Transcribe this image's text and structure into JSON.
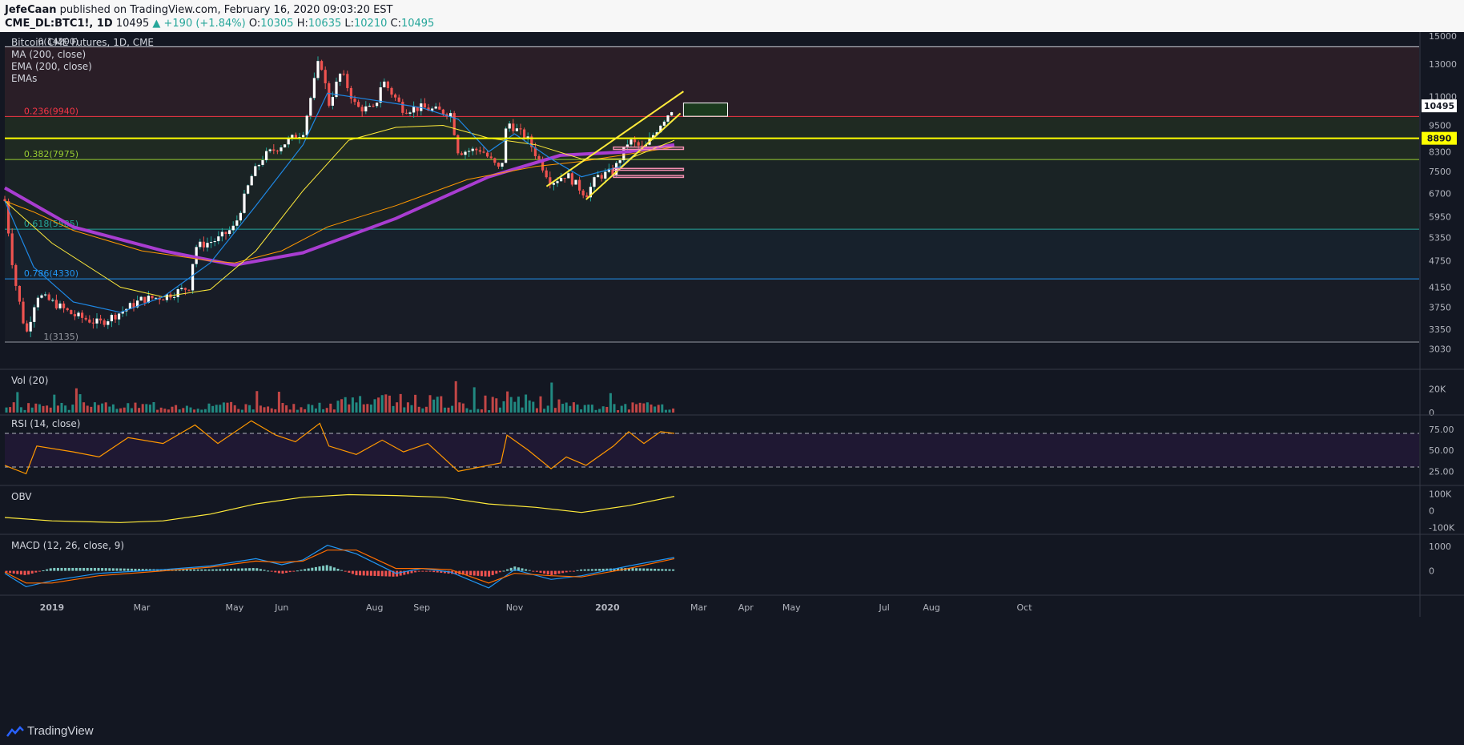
{
  "header": {
    "author": "JefeCaan",
    "published": "published on TradingView.com, February 16, 2020 09:03:20 EST",
    "symbol": "CME_DL:BTC1!, 1D",
    "last": "10495",
    "change": "▲ +190 (+1.84%)",
    "o_label": "O:",
    "o_val": "10305",
    "h_label": "H:",
    "h_val": "10635",
    "l_label": "L:",
    "l_val": "10210",
    "c_label": "C:",
    "c_val": "10495"
  },
  "footer": {
    "brand": "TradingView"
  },
  "chart_data": [
    {
      "type": "candlestick",
      "title": "Bitcoin CME Futures, 1D, CME",
      "indicators": [
        "MA (200, close)",
        "EMA (200, close)",
        "EMAs"
      ],
      "scale": "log",
      "y_ticks": [
        15000,
        13000,
        11000,
        9500,
        8300,
        7500,
        6700,
        5950,
        5350,
        4750,
        4150,
        3750,
        3350,
        3030
      ],
      "y_tick_labels": [
        "15000",
        "13000",
        "11000",
        "9500",
        "8300",
        "7500",
        "6700",
        "5950",
        "5350",
        "4750",
        "4150",
        "3750",
        "3350",
        "3030"
      ],
      "price_badges": [
        {
          "label": "10495",
          "value": 10495,
          "color": "#ffffff"
        },
        {
          "label": "8890",
          "value": 8890,
          "color": "#ffff00"
        }
      ],
      "fib_levels": [
        {
          "label": "0(14200)",
          "value": 14200,
          "color": "#d1d4dc"
        },
        {
          "label": "0.236(9940)",
          "value": 9940,
          "color": "#f23645"
        },
        {
          "label": "0.382(7975)",
          "value": 7975,
          "color": "#9acd32"
        },
        {
          "label": "0.618(5585)",
          "value": 5585,
          "color": "#26a69a"
        },
        {
          "label": "0.786(4330)",
          "value": 4330,
          "color": "#2196f3"
        },
        {
          "label": "1(3135)",
          "value": 3135,
          "color": "#9598a1"
        }
      ],
      "x_ticks": [
        "2019",
        "Mar",
        "May",
        "Jun",
        "Aug",
        "Sep",
        "Nov",
        "2020",
        "Mar",
        "Apr",
        "May",
        "Jul",
        "Aug",
        "Oct"
      ],
      "close_path": [
        [
          "2018-12-01",
          6450
        ],
        [
          "2018-12-07",
          4400
        ],
        [
          "2018-12-15",
          3250
        ],
        [
          "2018-12-22",
          4000
        ],
        [
          "2019-01-01",
          3850
        ],
        [
          "2019-01-15",
          3600
        ],
        [
          "2019-02-01",
          3450
        ],
        [
          "2019-02-15",
          3650
        ],
        [
          "2019-03-01",
          3900
        ],
        [
          "2019-03-15",
          3950
        ],
        [
          "2019-04-01",
          4150
        ],
        [
          "2019-04-05",
          5100
        ],
        [
          "2019-04-20",
          5300
        ],
        [
          "2019-05-01",
          5650
        ],
        [
          "2019-05-12",
          7300
        ],
        [
          "2019-05-20",
          8100
        ],
        [
          "2019-06-01",
          8600
        ],
        [
          "2019-06-15",
          9200
        ],
        [
          "2019-06-26",
          13500
        ],
        [
          "2019-07-02",
          10600
        ],
        [
          "2019-07-10",
          12500
        ],
        [
          "2019-07-20",
          10400
        ],
        [
          "2019-08-01",
          10300
        ],
        [
          "2019-08-06",
          12000
        ],
        [
          "2019-08-20",
          10300
        ],
        [
          "2019-09-01",
          10400
        ],
        [
          "2019-09-20",
          10100
        ],
        [
          "2019-09-25",
          8300
        ],
        [
          "2019-10-10",
          8400
        ],
        [
          "2019-10-23",
          7500
        ],
        [
          "2019-10-27",
          9700
        ],
        [
          "2019-11-10",
          8800
        ],
        [
          "2019-11-25",
          7100
        ],
        [
          "2019-12-05",
          7400
        ],
        [
          "2019-12-18",
          6650
        ],
        [
          "2019-12-25",
          7300
        ],
        [
          "2020-01-05",
          7500
        ],
        [
          "2020-01-15",
          8800
        ],
        [
          "2020-01-25",
          8400
        ],
        [
          "2020-02-05",
          9600
        ],
        [
          "2020-02-14",
          10495
        ]
      ],
      "ma200_path": [
        [
          "2018-12-01",
          6900
        ],
        [
          "2019-01-15",
          5650
        ],
        [
          "2019-03-15",
          5000
        ],
        [
          "2019-05-01",
          4650
        ],
        [
          "2019-06-15",
          4950
        ],
        [
          "2019-08-15",
          5900
        ],
        [
          "2019-10-15",
          7300
        ],
        [
          "2019-12-01",
          8150
        ],
        [
          "2020-01-15",
          8300
        ],
        [
          "2020-02-14",
          8600
        ]
      ],
      "ema200_path": [
        [
          "2018-12-01",
          6450
        ],
        [
          "2018-12-20",
          6100
        ],
        [
          "2019-01-15",
          5550
        ],
        [
          "2019-03-01",
          5000
        ],
        [
          "2019-04-15",
          4750
        ],
        [
          "2019-05-01",
          4700
        ],
        [
          "2019-06-01",
          5000
        ],
        [
          "2019-07-01",
          5650
        ],
        [
          "2019-08-15",
          6300
        ],
        [
          "2019-10-01",
          7200
        ],
        [
          "2019-11-15",
          7700
        ],
        [
          "2019-12-15",
          7900
        ],
        [
          "2020-01-15",
          8200
        ],
        [
          "2020-02-14",
          8500
        ]
      ],
      "ema_fast_path": [
        [
          "2018-12-01",
          6450
        ],
        [
          "2018-12-20",
          4600
        ],
        [
          "2019-01-15",
          3850
        ],
        [
          "2019-02-15",
          3650
        ],
        [
          "2019-03-15",
          3950
        ],
        [
          "2019-04-15",
          4700
        ],
        [
          "2019-05-15",
          6300
        ],
        [
          "2019-06-15",
          8600
        ],
        [
          "2019-07-01",
          11200
        ],
        [
          "2019-08-01",
          10800
        ],
        [
          "2019-09-01",
          10400
        ],
        [
          "2019-09-25",
          9800
        ],
        [
          "2019-10-15",
          8300
        ],
        [
          "2019-11-01",
          9100
        ],
        [
          "2019-11-25",
          8000
        ],
        [
          "2019-12-15",
          7300
        ],
        [
          "2020-01-10",
          7700
        ],
        [
          "2020-02-14",
          9800
        ]
      ],
      "ema_slow_path": [
        [
          "2018-12-01",
          6450
        ],
        [
          "2019-01-01",
          5200
        ],
        [
          "2019-02-15",
          4150
        ],
        [
          "2019-03-15",
          3950
        ],
        [
          "2019-04-15",
          4100
        ],
        [
          "2019-05-15",
          5000
        ],
        [
          "2019-06-15",
          6800
        ],
        [
          "2019-07-15",
          8800
        ],
        [
          "2019-08-15",
          9400
        ],
        [
          "2019-09-15",
          9500
        ],
        [
          "2019-10-15",
          8900
        ],
        [
          "2019-11-15",
          8600
        ],
        [
          "2019-12-15",
          8000
        ],
        [
          "2020-01-15",
          8000
        ],
        [
          "2020-02-14",
          8800
        ]
      ],
      "trendlines": [
        {
          "from": [
            "2019-11-22",
            6950
          ],
          "to": [
            "2020-02-20",
            11300
          ]
        },
        {
          "from": [
            "2019-12-18",
            6500
          ],
          "to": [
            "2020-02-18",
            10100
          ]
        }
      ],
      "horizontal_lines": [
        {
          "value": 8890,
          "color": "#ffff00"
        }
      ],
      "target_box": {
        "from": "2020-02-20",
        "to": "2020-03-20",
        "low": 9950,
        "high": 10650
      },
      "support_boxes": [
        {
          "from": "2020-01-05",
          "to": "2020-02-20",
          "low": 8400,
          "high": 8500
        },
        {
          "from": "2020-01-05",
          "to": "2020-02-20",
          "low": 7550,
          "high": 7620
        },
        {
          "from": "2020-01-05",
          "to": "2020-02-20",
          "low": 7280,
          "high": 7350
        }
      ]
    },
    {
      "type": "bar",
      "title": "Vol (20)",
      "y_tick_labels": [
        "20K",
        "0"
      ],
      "ylim": [
        0,
        34000
      ]
    },
    {
      "type": "line",
      "title": "RSI (14, close)",
      "y_tick_labels": [
        "75.00",
        "50.00",
        "25.00"
      ],
      "bands": [
        70,
        30
      ],
      "ylim": [
        10,
        90
      ],
      "values": [
        [
          "2018-12-01",
          32
        ],
        [
          "2018-12-15",
          22
        ],
        [
          "2018-12-22",
          55
        ],
        [
          "2019-01-15",
          48
        ],
        [
          "2019-02-01",
          42
        ],
        [
          "2019-02-20",
          65
        ],
        [
          "2019-03-15",
          58
        ],
        [
          "2019-04-05",
          80
        ],
        [
          "2019-04-20",
          58
        ],
        [
          "2019-05-12",
          85
        ],
        [
          "2019-05-28",
          68
        ],
        [
          "2019-06-10",
          60
        ],
        [
          "2019-06-26",
          82
        ],
        [
          "2019-07-02",
          55
        ],
        [
          "2019-07-20",
          45
        ],
        [
          "2019-08-06",
          62
        ],
        [
          "2019-08-20",
          48
        ],
        [
          "2019-09-05",
          58
        ],
        [
          "2019-09-25",
          25
        ],
        [
          "2019-10-23",
          35
        ],
        [
          "2019-10-27",
          68
        ],
        [
          "2019-11-10",
          50
        ],
        [
          "2019-11-25",
          28
        ],
        [
          "2019-12-05",
          42
        ],
        [
          "2019-12-18",
          32
        ],
        [
          "2020-01-05",
          55
        ],
        [
          "2020-01-15",
          72
        ],
        [
          "2020-01-25",
          58
        ],
        [
          "2020-02-05",
          72
        ],
        [
          "2020-02-14",
          70
        ]
      ]
    },
    {
      "type": "line",
      "title": "OBV",
      "y_tick_labels": [
        "100K",
        "0",
        "-100K"
      ],
      "ylim": [
        -130000,
        140000
      ],
      "values": [
        [
          "2018-12-01",
          -40000
        ],
        [
          "2019-01-01",
          -60000
        ],
        [
          "2019-02-15",
          -70000
        ],
        [
          "2019-03-15",
          -60000
        ],
        [
          "2019-04-15",
          -20000
        ],
        [
          "2019-05-15",
          40000
        ],
        [
          "2019-06-15",
          80000
        ],
        [
          "2019-07-15",
          95000
        ],
        [
          "2019-08-15",
          90000
        ],
        [
          "2019-09-15",
          80000
        ],
        [
          "2019-10-15",
          40000
        ],
        [
          "2019-11-15",
          20000
        ],
        [
          "2019-12-15",
          -10000
        ],
        [
          "2020-01-15",
          30000
        ],
        [
          "2020-02-14",
          85000
        ]
      ]
    },
    {
      "type": "line",
      "title": "MACD (12, 26, close, 9)",
      "y_tick_labels": [
        "1000",
        "0"
      ],
      "ylim": [
        -900,
        1400
      ],
      "series": [
        {
          "color": "#2196f3",
          "values": [
            [
              "2018-12-01",
              -100
            ],
            [
              "2018-12-15",
              -650
            ],
            [
              "2019-01-01",
              -400
            ],
            [
              "2019-02-01",
              -100
            ],
            [
              "2019-03-15",
              50
            ],
            [
              "2019-04-15",
              200
            ],
            [
              "2019-05-15",
              500
            ],
            [
              "2019-06-01",
              250
            ],
            [
              "2019-06-15",
              450
            ],
            [
              "2019-07-01",
              1050
            ],
            [
              "2019-07-20",
              700
            ],
            [
              "2019-08-15",
              -100
            ],
            [
              "2019-09-01",
              100
            ],
            [
              "2019-09-20",
              -50
            ],
            [
              "2019-10-15",
              -700
            ],
            [
              "2019-11-01",
              50
            ],
            [
              "2019-11-25",
              -350
            ],
            [
              "2019-12-15",
              -200
            ],
            [
              "2020-01-15",
              200
            ],
            [
              "2020-02-14",
              550
            ]
          ]
        },
        {
          "color": "#ff6d00",
          "values": [
            [
              "2018-12-01",
              -50
            ],
            [
              "2018-12-15",
              -500
            ],
            [
              "2019-01-01",
              -500
            ],
            [
              "2019-02-01",
              -200
            ],
            [
              "2019-03-15",
              0
            ],
            [
              "2019-04-15",
              150
            ],
            [
              "2019-05-15",
              400
            ],
            [
              "2019-06-01",
              350
            ],
            [
              "2019-06-15",
              400
            ],
            [
              "2019-07-01",
              850
            ],
            [
              "2019-07-20",
              850
            ],
            [
              "2019-08-15",
              100
            ],
            [
              "2019-09-01",
              100
            ],
            [
              "2019-09-20",
              50
            ],
            [
              "2019-10-15",
              -500
            ],
            [
              "2019-11-01",
              -100
            ],
            [
              "2019-11-25",
              -200
            ],
            [
              "2019-12-15",
              -250
            ],
            [
              "2020-01-15",
              100
            ],
            [
              "2020-02-14",
              500
            ]
          ]
        }
      ]
    }
  ]
}
